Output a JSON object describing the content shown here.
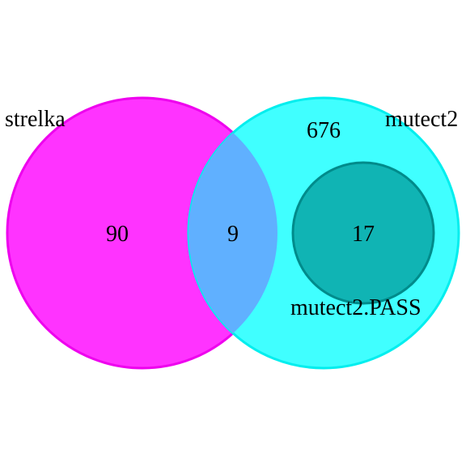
{
  "diagram": {
    "type": "euler-venn",
    "sets": [
      {
        "name": "strelka",
        "color": "#ff00ff",
        "fill": "#ff33ff",
        "outline": "#ee00ee"
      },
      {
        "name": "mutect2",
        "color": "#00ffff",
        "fill": "#40ffff",
        "outline": "#00eeee"
      },
      {
        "name": "mutect2.PASS",
        "color": "#008b8b",
        "fill": "#10b4b4",
        "outline": "#008b8b"
      }
    ],
    "regions": [
      {
        "sets": [
          "strelka"
        ],
        "count": "90"
      },
      {
        "sets": [
          "strelka",
          "mutect2"
        ],
        "count": "9",
        "fill": "#60b0ff"
      },
      {
        "sets": [
          "mutect2"
        ],
        "count": "676"
      },
      {
        "sets": [
          "mutect2",
          "mutect2.PASS"
        ],
        "count": "17"
      }
    ]
  }
}
